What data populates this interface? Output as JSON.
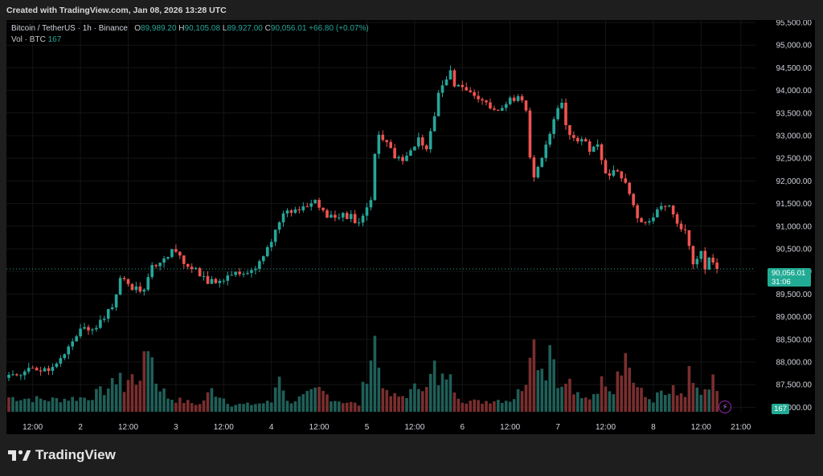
{
  "header": {
    "created_text": "Created with TradingView.com, Jan 08, 2026 13:28 UTC"
  },
  "legend": {
    "symbol": "Bitcoin / TetherUS · 1h · Binance",
    "open_key": "O",
    "open": "89,989.20",
    "high_key": "H",
    "high": "90,105.08",
    "low_key": "L",
    "low": "89,927.00",
    "close_key": "C",
    "close": "90,056.01",
    "change": "+66.80 (+0.07%)",
    "vol_label": "Vol · BTC",
    "vol_value": "167"
  },
  "price_tag": {
    "price": "90,056.01",
    "countdown": "31:06"
  },
  "vol_tag": "167",
  "footer": {
    "brand": "TradingView"
  },
  "colors": {
    "up": "#26a69a",
    "down": "#ef5350",
    "vol_up": "#1f5f58",
    "vol_down": "#7a2e2e",
    "axis_text": "#d1d4dc"
  },
  "chart_data": {
    "type": "candlestick",
    "y_axis": {
      "ylim": [
        86900,
        95500
      ],
      "ticks": [
        87000,
        87500,
        88000,
        88500,
        89000,
        89500,
        90000,
        90500,
        91000,
        91500,
        92000,
        92500,
        93000,
        93500,
        94000,
        94500,
        95000,
        95500
      ],
      "tick_labels": [
        "87,000.00",
        "87,500.00",
        "88,000.00",
        "88,500.00",
        "89,000.00",
        "89,500.00",
        "90,000.00",
        "90,500.00",
        "91,000.00",
        "91,500.00",
        "92,000.00",
        "92,500.00",
        "93,000.00",
        "93,500.00",
        "94,000.00",
        "94,500.00",
        "95,000.00",
        "95,500.00"
      ]
    },
    "x_axis": {
      "tick_labels": [
        "12:00",
        "2",
        "12:00",
        "3",
        "12:00",
        "4",
        "12:00",
        "5",
        "12:00",
        "6",
        "12:00",
        "7",
        "12:00",
        "8",
        "12:00",
        "21:00"
      ],
      "tick_bar_index": [
        6,
        18,
        30,
        42,
        54,
        66,
        78,
        90,
        102,
        114,
        126,
        138,
        150,
        162,
        174,
        184
      ]
    },
    "last_price": 90056.01,
    "ohlc_anchors": [
      [
        0,
        87650
      ],
      [
        6,
        87850
      ],
      [
        10,
        87850
      ],
      [
        14,
        88150
      ],
      [
        18,
        88700
      ],
      [
        22,
        88800
      ],
      [
        26,
        89200
      ],
      [
        28,
        89850
      ],
      [
        31,
        89650
      ],
      [
        34,
        89550
      ],
      [
        36,
        90100
      ],
      [
        38,
        90250
      ],
      [
        41,
        90450
      ],
      [
        44,
        90200
      ],
      [
        47,
        90050
      ],
      [
        50,
        89750
      ],
      [
        53,
        89800
      ],
      [
        56,
        89950
      ],
      [
        59,
        90000
      ],
      [
        62,
        90100
      ],
      [
        64,
        90400
      ],
      [
        66,
        90600
      ],
      [
        68,
        91150
      ],
      [
        70,
        91300
      ],
      [
        74,
        91400
      ],
      [
        77,
        91550
      ],
      [
        80,
        91200
      ],
      [
        83,
        91250
      ],
      [
        86,
        91200
      ],
      [
        88,
        91050
      ],
      [
        89,
        91250
      ],
      [
        91,
        91600
      ],
      [
        92,
        92600
      ],
      [
        93,
        93050
      ],
      [
        95,
        92850
      ],
      [
        97,
        92500
      ],
      [
        99,
        92450
      ],
      [
        101,
        92650
      ],
      [
        103,
        92950
      ],
      [
        105,
        92700
      ],
      [
        107,
        93400
      ],
      [
        108,
        93950
      ],
      [
        110,
        94250
      ],
      [
        111,
        94450
      ],
      [
        112,
        94150
      ],
      [
        114,
        94050
      ],
      [
        116,
        93950
      ],
      [
        118,
        93850
      ],
      [
        120,
        93700
      ],
      [
        122,
        93550
      ],
      [
        124,
        93650
      ],
      [
        126,
        93800
      ],
      [
        128,
        93850
      ],
      [
        130,
        93600
      ],
      [
        131,
        92450
      ],
      [
        132,
        92050
      ],
      [
        134,
        92500
      ],
      [
        136,
        93100
      ],
      [
        138,
        93600
      ],
      [
        139,
        93750
      ],
      [
        140,
        93250
      ],
      [
        142,
        92900
      ],
      [
        144,
        92950
      ],
      [
        146,
        92700
      ],
      [
        148,
        92800
      ],
      [
        150,
        92100
      ],
      [
        152,
        92200
      ],
      [
        154,
        92100
      ],
      [
        156,
        91700
      ],
      [
        158,
        91200
      ],
      [
        160,
        91050
      ],
      [
        162,
        91250
      ],
      [
        164,
        91400
      ],
      [
        166,
        91500
      ],
      [
        168,
        91050
      ],
      [
        170,
        90950
      ],
      [
        172,
        90150
      ],
      [
        174,
        90400
      ],
      [
        175,
        90100
      ],
      [
        176,
        90300
      ],
      [
        178,
        90050
      ]
    ],
    "volume_anchors": [
      [
        0,
        30
      ],
      [
        10,
        25
      ],
      [
        20,
        30
      ],
      [
        24,
        45
      ],
      [
        26,
        55
      ],
      [
        28,
        85
      ],
      [
        29,
        40
      ],
      [
        30,
        60
      ],
      [
        31,
        90
      ],
      [
        33,
        50
      ],
      [
        34,
        130
      ],
      [
        35,
        150
      ],
      [
        36,
        110
      ],
      [
        37,
        65
      ],
      [
        40,
        30
      ],
      [
        42,
        25
      ],
      [
        45,
        20
      ],
      [
        48,
        15
      ],
      [
        51,
        45
      ],
      [
        53,
        35
      ],
      [
        56,
        15
      ],
      [
        60,
        15
      ],
      [
        66,
        20
      ],
      [
        68,
        85
      ],
      [
        70,
        20
      ],
      [
        74,
        30
      ],
      [
        78,
        45
      ],
      [
        82,
        25
      ],
      [
        88,
        15
      ],
      [
        92,
        150
      ],
      [
        93,
        95
      ],
      [
        95,
        35
      ],
      [
        98,
        30
      ],
      [
        101,
        40
      ],
      [
        103,
        55
      ],
      [
        106,
        70
      ],
      [
        107,
        95
      ],
      [
        108,
        50
      ],
      [
        110,
        80
      ],
      [
        112,
        50
      ],
      [
        114,
        25
      ],
      [
        118,
        20
      ],
      [
        122,
        25
      ],
      [
        126,
        25
      ],
      [
        127,
        30
      ],
      [
        128,
        40
      ],
      [
        130,
        70
      ],
      [
        131,
        160
      ],
      [
        132,
        140
      ],
      [
        133,
        115
      ],
      [
        134,
        95
      ],
      [
        135,
        85
      ],
      [
        136,
        140
      ],
      [
        137,
        115
      ],
      [
        138,
        70
      ],
      [
        139,
        45
      ],
      [
        140,
        60
      ],
      [
        141,
        60
      ],
      [
        142,
        40
      ],
      [
        144,
        25
      ],
      [
        146,
        30
      ],
      [
        148,
        50
      ],
      [
        150,
        70
      ],
      [
        152,
        45
      ],
      [
        153,
        95
      ],
      [
        155,
        115
      ],
      [
        156,
        95
      ],
      [
        157,
        65
      ],
      [
        158,
        50
      ],
      [
        160,
        30
      ],
      [
        162,
        25
      ],
      [
        164,
        40
      ],
      [
        166,
        30
      ],
      [
        167,
        50
      ],
      [
        168,
        35
      ],
      [
        170,
        25
      ],
      [
        171,
        100
      ],
      [
        172,
        60
      ],
      [
        174,
        30
      ],
      [
        176,
        45
      ],
      [
        177,
        60
      ],
      [
        178,
        40
      ]
    ]
  }
}
